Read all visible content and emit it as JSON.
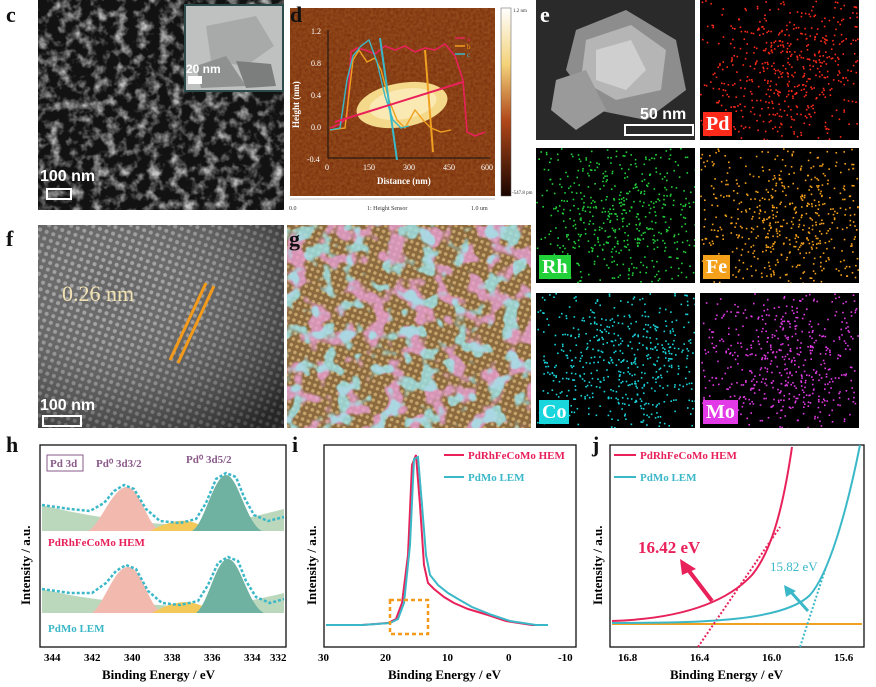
{
  "panels": {
    "c": {
      "label": "c",
      "scale_text": "100 nm",
      "inset_scale_text": "20 nm"
    },
    "d": {
      "label": "d",
      "ylabel": "Height (nm)",
      "xlabel": "Distance (nm)",
      "yticks": [
        "1.2",
        "0.8",
        "0.4",
        "0.0",
        "-0.4"
      ],
      "xticks": [
        "0",
        "150",
        "300",
        "450",
        "600"
      ],
      "legend": [
        "a",
        "b",
        "c"
      ],
      "colorbar_top": "1.2 nm",
      "colorbar_bottom": "-547.8 pm",
      "footer_left": "0.0",
      "footer_center": "1: Height Sensor",
      "footer_right": "1.0 um"
    },
    "e": {
      "label": "e",
      "scale_text": "50 nm",
      "maps": [
        {
          "element": "Pd",
          "color": "#ff2a1a"
        },
        {
          "element": "Rh",
          "color": "#22d13a"
        },
        {
          "element": "Fe",
          "color": "#f5a01a"
        },
        {
          "element": "Co",
          "color": "#18d6dc"
        },
        {
          "element": "Mo",
          "color": "#e23ae6"
        }
      ]
    },
    "f": {
      "label": "f",
      "spacing_text": "0.26 nm",
      "scale_text": "100 nm"
    },
    "g": {
      "label": "g"
    },
    "h": {
      "label": "h",
      "tag": "Pd 3d",
      "peak1": "Pd⁰ 3d3/2",
      "peak2": "Pd⁰ 3d5/2",
      "sample1": "PdRhFeCoMo HEM",
      "sample2": "PdMo LEM",
      "ylabel": "Intensity / a.u.",
      "xlabel": "Binding Energy / eV",
      "xticks": [
        "344",
        "342",
        "340",
        "338",
        "336",
        "334",
        "332"
      ]
    },
    "i": {
      "label": "i",
      "legend1": "PdRhFeCoMo HEM",
      "legend2": "PdMo LEM",
      "ylabel": "Intensity / a.u.",
      "xlabel": "Binding Energy / eV",
      "xticks": [
        "30",
        "20",
        "10",
        "0",
        "-10"
      ]
    },
    "j": {
      "label": "j",
      "legend1": "PdRhFeCoMo HEM",
      "legend2": "PdMo LEM",
      "value1": "16.42 eV",
      "value2": "15.82 eV",
      "ylabel": "Intensity / a.u.",
      "xlabel": "Binding Energy / eV",
      "xticks": [
        "16.8",
        "16.4",
        "16.0",
        "15.6"
      ]
    }
  },
  "colors": {
    "hem": "#e8215a",
    "lem": "#3bb8c8",
    "baseline": "#f0a020",
    "box": "#f39a1a"
  }
}
